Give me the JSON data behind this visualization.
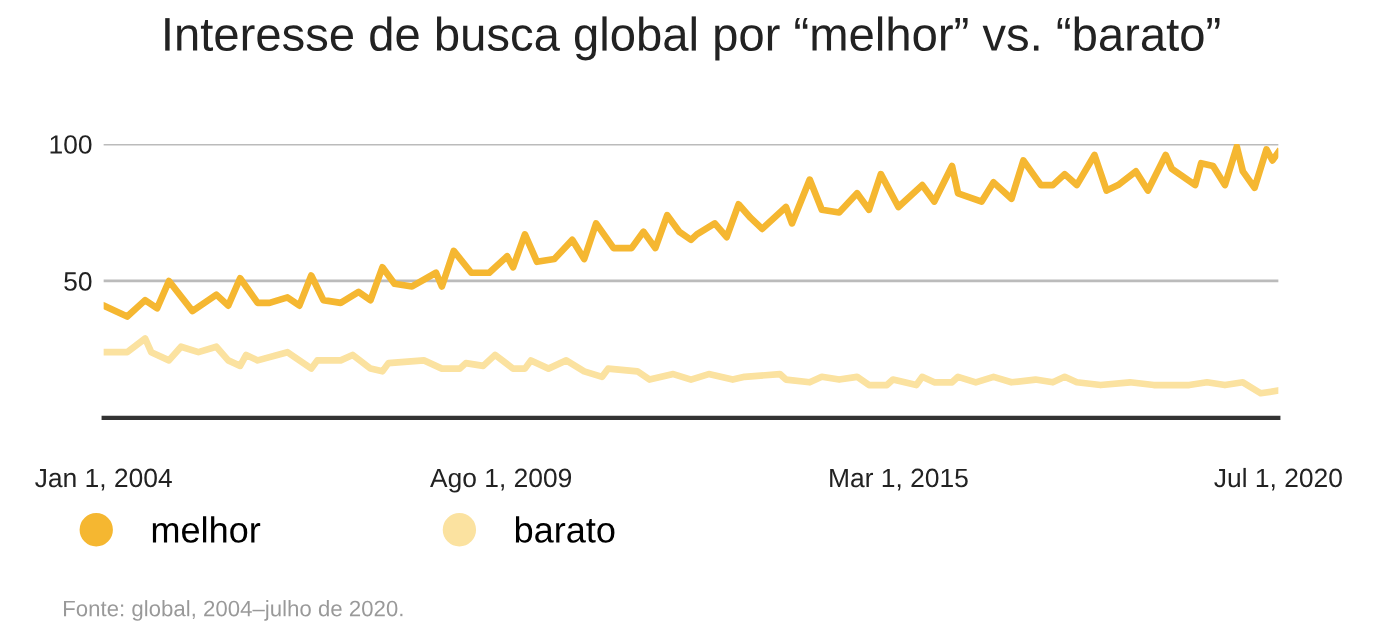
{
  "chart_data": {
    "type": "line",
    "title": "Interesse de busca global por “melhor” vs. “barato”",
    "annotations": [
      "Fonte: global, 2004–julho de 2020."
    ],
    "xlim": [
      "2004-01",
      "2020-07"
    ],
    "xticks": [
      {
        "value": "2004-01-01",
        "label": "Jan 1, 2004"
      },
      {
        "value": "2009-08-01",
        "label": "Ago 1, 2009"
      },
      {
        "value": "2015-03-01",
        "label": "Mar 1, 2015"
      },
      {
        "value": "2020-07-01",
        "label": "Jul 1, 2020"
      }
    ],
    "ylim": [
      0,
      100
    ],
    "yticks": [
      50,
      100
    ],
    "grid": "y",
    "legend": "bottom",
    "marker": "none",
    "line_style": "solid",
    "series": [
      {
        "name": "melhor",
        "color": "#f5b731",
        "x": [
          "2004-01",
          "2004-05",
          "2004-08",
          "2004-10",
          "2004-12",
          "2005-04",
          "2005-08",
          "2005-10",
          "2005-12",
          "2006-03",
          "2006-05",
          "2006-08",
          "2006-10",
          "2006-12",
          "2007-02",
          "2007-05",
          "2007-08",
          "2007-10",
          "2007-12",
          "2008-02",
          "2008-05",
          "2008-09",
          "2008-10",
          "2008-12",
          "2009-03",
          "2009-06",
          "2009-09",
          "2009-10",
          "2009-12",
          "2010-02",
          "2010-05",
          "2010-08",
          "2010-10",
          "2010-12",
          "2011-03",
          "2011-06",
          "2011-08",
          "2011-10",
          "2011-12",
          "2012-02",
          "2012-04",
          "2012-05",
          "2012-08",
          "2012-10",
          "2012-12",
          "2013-02",
          "2013-04",
          "2013-08",
          "2013-09",
          "2013-12",
          "2014-02",
          "2014-05",
          "2014-08",
          "2014-10",
          "2014-12",
          "2015-03",
          "2015-07",
          "2015-09",
          "2015-12",
          "2016-01",
          "2016-05",
          "2016-07",
          "2016-10",
          "2016-12",
          "2017-03",
          "2017-05",
          "2017-07",
          "2017-09",
          "2017-12",
          "2018-02",
          "2018-04",
          "2018-07",
          "2018-09",
          "2018-12",
          "2019-01",
          "2019-05",
          "2019-06",
          "2019-08",
          "2019-10",
          "2019-12",
          "2020-01",
          "2020-03",
          "2020-05",
          "2020-06",
          "2020-07"
        ],
        "values": [
          41,
          37,
          43,
          40,
          50,
          39,
          45,
          41,
          51,
          42,
          42,
          44,
          41,
          52,
          43,
          42,
          46,
          43,
          55,
          49,
          48,
          53,
          48,
          61,
          53,
          53,
          59,
          55,
          67,
          57,
          58,
          65,
          58,
          71,
          62,
          62,
          68,
          62,
          74,
          68,
          65,
          67,
          71,
          66,
          78,
          73,
          69,
          77,
          71,
          87,
          76,
          75,
          82,
          76,
          89,
          77,
          85,
          79,
          92,
          82,
          79,
          86,
          80,
          94,
          85,
          85,
          89,
          85,
          96,
          83,
          85,
          90,
          83,
          96,
          91,
          85,
          93,
          92,
          85,
          99,
          90,
          84,
          98,
          94,
          97
        ]
      },
      {
        "name": "barato",
        "color": "#fbe2a0",
        "x": [
          "2004-01",
          "2004-05",
          "2004-08",
          "2004-09",
          "2004-12",
          "2005-02",
          "2005-05",
          "2005-08",
          "2005-10",
          "2005-12",
          "2006-01",
          "2006-03",
          "2006-08",
          "2006-12",
          "2007-01",
          "2007-05",
          "2007-07",
          "2007-10",
          "2007-12",
          "2008-01",
          "2008-07",
          "2008-10",
          "2009-01",
          "2009-02",
          "2009-05",
          "2009-07",
          "2009-10",
          "2009-12",
          "2010-01",
          "2010-04",
          "2010-07",
          "2010-10",
          "2011-01",
          "2011-02",
          "2011-07",
          "2011-09",
          "2012-01",
          "2012-04",
          "2012-07",
          "2012-11",
          "2013-01",
          "2013-07",
          "2013-08",
          "2013-12",
          "2014-02",
          "2014-05",
          "2014-08",
          "2014-10",
          "2015-01",
          "2015-02",
          "2015-06",
          "2015-07",
          "2015-09",
          "2015-12",
          "2016-01",
          "2016-04",
          "2016-07",
          "2016-10",
          "2017-02",
          "2017-05",
          "2017-07",
          "2017-09",
          "2018-01",
          "2018-06",
          "2018-10",
          "2019-04",
          "2019-07",
          "2019-10",
          "2020-01",
          "2020-04",
          "2020-07"
        ],
        "values": [
          24,
          24,
          29,
          24,
          21,
          26,
          24,
          26,
          21,
          19,
          23,
          21,
          24,
          18,
          21,
          21,
          23,
          18,
          17,
          20,
          21,
          18,
          18,
          20,
          19,
          23,
          18,
          18,
          21,
          18,
          21,
          17,
          15,
          18,
          17,
          14,
          16,
          14,
          16,
          14,
          15,
          16,
          14,
          13,
          15,
          14,
          15,
          12,
          12,
          14,
          12,
          15,
          13,
          13,
          15,
          13,
          15,
          13,
          14,
          13,
          15,
          13,
          12,
          13,
          12,
          12,
          13,
          12,
          13,
          9,
          10
        ]
      }
    ]
  }
}
